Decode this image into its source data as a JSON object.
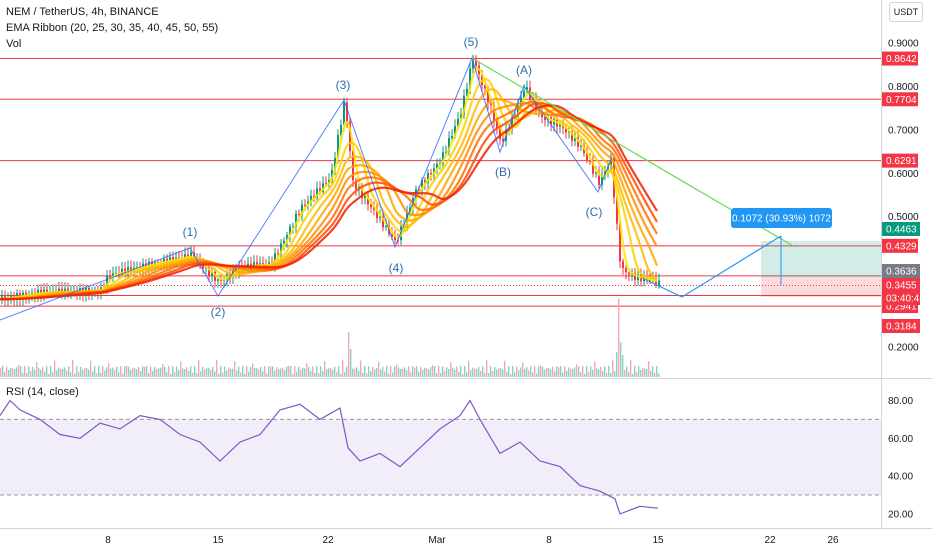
{
  "header": {
    "symbol_line": "NEM / TetherUS, 4h, BINANCE",
    "ema_line": "EMA Ribbon (20, 25, 30, 35, 40, 45, 50, 55)",
    "vol_line": "Vol",
    "currency_button": "USDT"
  },
  "rsi": {
    "legend": "RSI (14, close)",
    "ticks": [
      "80.00",
      "60.00",
      "40.00",
      "20.00"
    ],
    "upper_band": 70,
    "lower_band": 30
  },
  "price_axis": {
    "ticks": [
      "0.9000",
      "0.8000",
      "0.7000",
      "0.6000",
      "0.5000",
      "0.2000"
    ]
  },
  "time_axis": {
    "ticks": [
      "8",
      "15",
      "22",
      "Mar",
      "8",
      "15",
      "22",
      "26"
    ]
  },
  "levels": [
    {
      "label": "0.8642",
      "value": 0.8642
    },
    {
      "label": "0.7704",
      "value": 0.7704
    },
    {
      "label": "0.6291",
      "value": 0.6291
    },
    {
      "label": "0.4329",
      "value": 0.4329
    },
    {
      "label": "0.3638",
      "value": 0.3638
    },
    {
      "label": "0.3185",
      "value": 0.3185
    },
    {
      "label": "0.2941",
      "value": 0.2941
    }
  ],
  "price_tags": [
    {
      "label": "0.4463",
      "kind": "target",
      "color": "#089981"
    },
    {
      "label": "0.3636",
      "kind": "crosshair",
      "color": "#787b86"
    },
    {
      "label": "0.3455",
      "kind": "last",
      "color": "#f23645"
    },
    {
      "label": "03:40:42",
      "kind": "countdown",
      "color": "#f23645"
    },
    {
      "label": "0.3184",
      "kind": "level",
      "color": "#f23645"
    }
  ],
  "measure_label": "0.1072 (30.93%) 1072",
  "wave_labels": [
    "(1)",
    "(2)",
    "(3)",
    "(4)",
    "(5)",
    "(A)",
    "(B)",
    "(C)"
  ],
  "colors": {
    "level": "#f23645",
    "wave": "#2962ff",
    "label_text": "#2a6fad",
    "trend": "#66dd55",
    "rsi_line": "#7e57c2",
    "rsi_band": "#7e57c2",
    "measure": "#2196f3",
    "candle_up": "#089981",
    "candle_down": "#f23645"
  }
}
